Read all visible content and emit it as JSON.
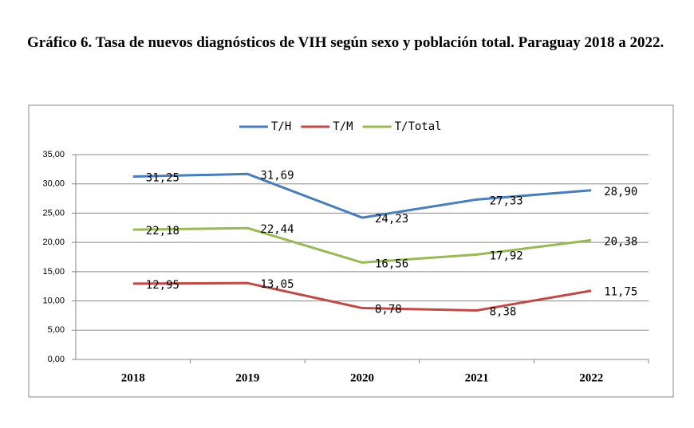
{
  "chart_data": {
    "type": "line",
    "title": "Gráfico 6. Tasa de nuevos diagnósticos de VIH según sexo y población total.  Paraguay 2018 a 2022.",
    "categories": [
      "2018",
      "2019",
      "2020",
      "2021",
      "2022"
    ],
    "series": [
      {
        "name": "T/H",
        "color": "#4a7ebb",
        "values": [
          31.25,
          31.69,
          24.23,
          27.33,
          28.9
        ],
        "value_labels": [
          "31,25",
          "31,69",
          "24,23",
          "27,33",
          "28,90"
        ]
      },
      {
        "name": "T/M",
        "color": "#be4b48",
        "values": [
          12.95,
          13.05,
          8.78,
          8.38,
          11.75
        ],
        "value_labels": [
          "12,95",
          "13,05",
          "8,78",
          "8,38",
          "11,75"
        ]
      },
      {
        "name": "T/Total",
        "color": "#98b954",
        "values": [
          22.18,
          22.44,
          16.56,
          17.92,
          20.38
        ],
        "value_labels": [
          "22,18",
          "22,44",
          "16,56",
          "17,92",
          "20,38"
        ]
      }
    ],
    "ylim": [
      0,
      35
    ],
    "yticks": [
      {
        "value": 0,
        "label": "0,00"
      },
      {
        "value": 5,
        "label": "5,00"
      },
      {
        "value": 10,
        "label": "10,00"
      },
      {
        "value": 15,
        "label": "15,00"
      },
      {
        "value": 20,
        "label": "20,00"
      },
      {
        "value": 25,
        "label": "25,00"
      },
      {
        "value": 30,
        "label": "30,00"
      },
      {
        "value": 35,
        "label": "35,00"
      }
    ],
    "grid": true,
    "legend": "top"
  }
}
